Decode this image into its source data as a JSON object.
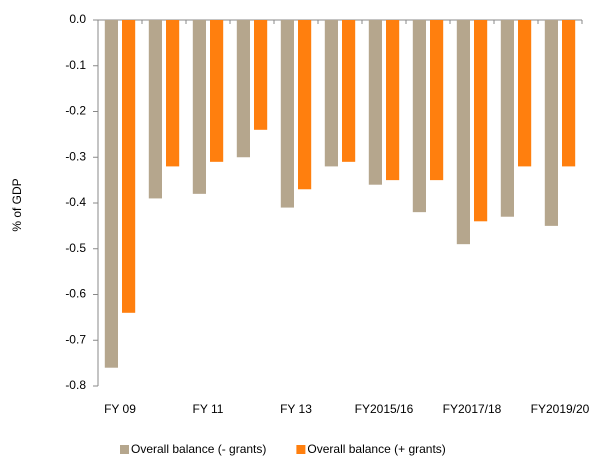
{
  "chart_data": {
    "type": "bar",
    "y_label": "% of GDP",
    "categories": [
      "FY 09",
      null,
      "FY 11",
      null,
      "FY 13",
      null,
      "FY2015/16",
      null,
      "FY2017/18",
      null,
      "FY2019/20"
    ],
    "series": [
      {
        "name": "Overall balance (- grants)",
        "color": "#b5a68d",
        "values": [
          -0.76,
          -0.39,
          -0.38,
          -0.3,
          -0.41,
          -0.32,
          -0.36,
          -0.42,
          -0.49,
          -0.43,
          -0.45
        ]
      },
      {
        "name": "Overall balance (+ grants)",
        "color": "#ff7f0e",
        "values": [
          -0.64,
          -0.32,
          -0.31,
          -0.24,
          -0.37,
          -0.31,
          -0.35,
          -0.35,
          -0.44,
          -0.32,
          -0.32
        ]
      }
    ],
    "ylim": [
      -0.8,
      0
    ],
    "yticks": [
      {
        "value": 0,
        "label": "0.0"
      },
      -0.1,
      -0.2,
      -0.3,
      -0.4,
      -0.5,
      -0.6,
      -0.7,
      -0.8
    ]
  }
}
